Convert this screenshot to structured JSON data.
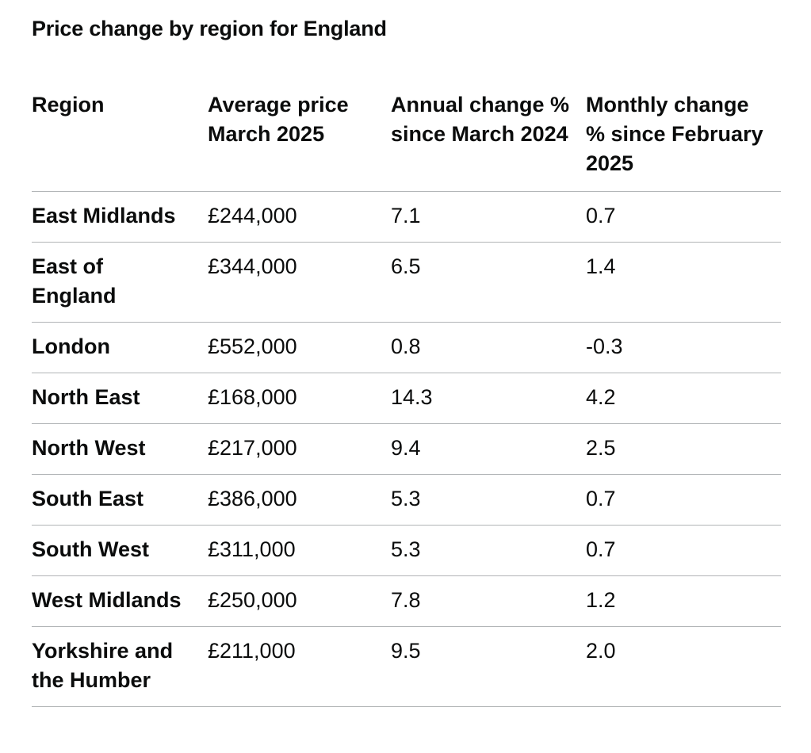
{
  "caption": "Price change by region for England",
  "headers": {
    "region": "Region",
    "average_price": "Average price March 2025",
    "annual_change": "Annual change % since March 2024",
    "monthly_change": "Monthly change % since February 2025"
  },
  "rows": [
    {
      "region": "East Midlands",
      "price": "£244,000",
      "annual": "7.1",
      "monthly": "0.7"
    },
    {
      "region": "East of England",
      "price": "£344,000",
      "annual": "6.5",
      "monthly": "1.4"
    },
    {
      "region": "London",
      "price": "£552,000",
      "annual": "0.8",
      "monthly": "-0.3"
    },
    {
      "region": "North East",
      "price": "£168,000",
      "annual": "14.3",
      "monthly": "4.2"
    },
    {
      "region": "North West",
      "price": "£217,000",
      "annual": "9.4",
      "monthly": "2.5"
    },
    {
      "region": "South East",
      "price": "£386,000",
      "annual": "5.3",
      "monthly": "0.7"
    },
    {
      "region": "South West",
      "price": "£311,000",
      "annual": "5.3",
      "monthly": "0.7"
    },
    {
      "region": "West Midlands",
      "price": "£250,000",
      "annual": "7.8",
      "monthly": "1.2"
    },
    {
      "region": "Yorkshire and the Humber",
      "price": "£211,000",
      "annual": "9.5",
      "monthly": "2.0"
    }
  ]
}
